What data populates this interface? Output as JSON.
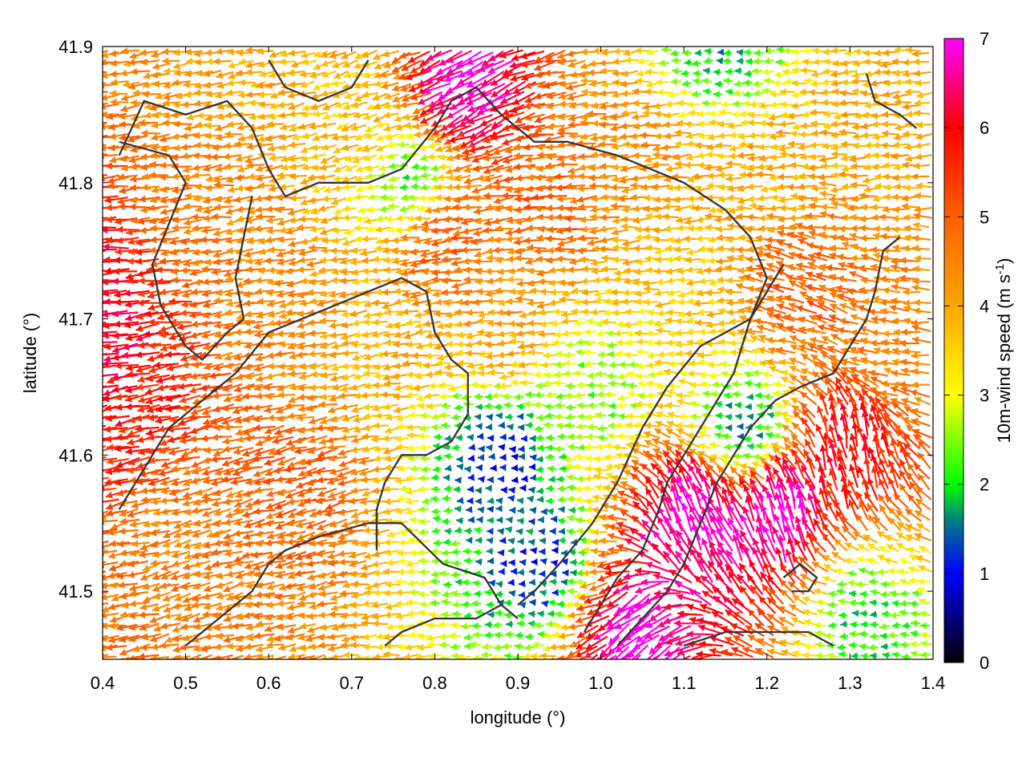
{
  "chart_data": {
    "type": "vector-field",
    "xlabel": "longitude (°)",
    "ylabel": "latitude (°)",
    "xlim": [
      0.4,
      1.4
    ],
    "ylim": [
      41.45,
      41.9
    ],
    "xticks": [
      {
        "value": 0.4,
        "label": "0.4"
      },
      {
        "value": 0.5,
        "label": "0.5"
      },
      {
        "value": 0.6,
        "label": "0.6"
      },
      {
        "value": 0.7,
        "label": "0.7"
      },
      {
        "value": 0.8,
        "label": "0.8"
      },
      {
        "value": 0.9,
        "label": "0.9"
      },
      {
        "value": 1.0,
        "label": "1.0"
      },
      {
        "value": 1.1,
        "label": "1.1"
      },
      {
        "value": 1.2,
        "label": "1.2"
      },
      {
        "value": 1.3,
        "label": "1.3"
      },
      {
        "value": 1.4,
        "label": "1.4"
      }
    ],
    "yticks": [
      {
        "value": 41.5,
        "label": "41.5"
      },
      {
        "value": 41.6,
        "label": "41.6"
      },
      {
        "value": 41.7,
        "label": "41.7"
      },
      {
        "value": 41.8,
        "label": "41.8"
      },
      {
        "value": 41.9,
        "label": "41.9"
      }
    ],
    "grid": true,
    "colorbar": {
      "label": "10m-wind speed (m s-1)",
      "label_main": "10m-wind speed (m s",
      "label_sup": "-1",
      "label_end": ")",
      "range": [
        0,
        7
      ],
      "ticks": [
        {
          "value": 0,
          "label": "0"
        },
        {
          "value": 1,
          "label": "1"
        },
        {
          "value": 2,
          "label": "2"
        },
        {
          "value": 3,
          "label": "3"
        },
        {
          "value": 4,
          "label": "4"
        },
        {
          "value": 5,
          "label": "5"
        },
        {
          "value": 6,
          "label": "6"
        },
        {
          "value": 7,
          "label": "7"
        }
      ],
      "stops": [
        {
          "value": 0,
          "color": "#000000"
        },
        {
          "value": 1,
          "color": "#0000ff"
        },
        {
          "value": 1.6,
          "color": "#008080"
        },
        {
          "value": 2,
          "color": "#00ff00"
        },
        {
          "value": 3,
          "color": "#ffff00"
        },
        {
          "value": 4,
          "color": "#ffa500"
        },
        {
          "value": 5,
          "color": "#ff6000"
        },
        {
          "value": 6,
          "color": "#ff0000"
        },
        {
          "value": 7,
          "color": "#ff00ff"
        }
      ]
    },
    "wind_regions": [
      {
        "lon": 0.4,
        "lat": 41.75,
        "speed": 6.0,
        "dir_deg": 185
      },
      {
        "lon": 0.42,
        "lat": 41.68,
        "speed": 6.2,
        "dir_deg": 190
      },
      {
        "lon": 0.45,
        "lat": 41.62,
        "speed": 5.8,
        "dir_deg": 192
      },
      {
        "lon": 0.5,
        "lat": 41.8,
        "speed": 4.6,
        "dir_deg": 185
      },
      {
        "lon": 0.5,
        "lat": 41.55,
        "speed": 4.5,
        "dir_deg": 195
      },
      {
        "lon": 0.55,
        "lat": 41.88,
        "speed": 4.0,
        "dir_deg": 190
      },
      {
        "lon": 0.62,
        "lat": 41.72,
        "speed": 4.4,
        "dir_deg": 188
      },
      {
        "lon": 0.65,
        "lat": 41.58,
        "speed": 5.0,
        "dir_deg": 195
      },
      {
        "lon": 0.72,
        "lat": 41.84,
        "speed": 3.6,
        "dir_deg": 200
      },
      {
        "lon": 0.75,
        "lat": 41.68,
        "speed": 3.8,
        "dir_deg": 190
      },
      {
        "lon": 0.78,
        "lat": 41.8,
        "speed": 2.0,
        "dir_deg": 185
      },
      {
        "lon": 0.82,
        "lat": 41.76,
        "speed": 5.2,
        "dir_deg": 188
      },
      {
        "lon": 0.85,
        "lat": 41.87,
        "speed": 7.0,
        "dir_deg": 210
      },
      {
        "lon": 0.88,
        "lat": 41.6,
        "speed": 1.0,
        "dir_deg": 180
      },
      {
        "lon": 0.9,
        "lat": 41.7,
        "speed": 4.2,
        "dir_deg": 185
      },
      {
        "lon": 0.93,
        "lat": 41.52,
        "speed": 1.2,
        "dir_deg": 175
      },
      {
        "lon": 0.95,
        "lat": 41.78,
        "speed": 5.0,
        "dir_deg": 185
      },
      {
        "lon": 1.0,
        "lat": 41.65,
        "speed": 2.4,
        "dir_deg": 182
      },
      {
        "lon": 1.05,
        "lat": 41.82,
        "speed": 4.3,
        "dir_deg": 185
      },
      {
        "lon": 1.05,
        "lat": 41.47,
        "speed": 7.0,
        "dir_deg": 220
      },
      {
        "lon": 1.1,
        "lat": 41.73,
        "speed": 3.6,
        "dir_deg": 185
      },
      {
        "lon": 1.12,
        "lat": 41.55,
        "speed": 7.0,
        "dir_deg": 110
      },
      {
        "lon": 1.15,
        "lat": 41.9,
        "speed": 1.8,
        "dir_deg": 180
      },
      {
        "lon": 1.18,
        "lat": 41.62,
        "speed": 1.5,
        "dir_deg": 180
      },
      {
        "lon": 1.2,
        "lat": 41.8,
        "speed": 4.0,
        "dir_deg": 185
      },
      {
        "lon": 1.22,
        "lat": 41.55,
        "speed": 7.0,
        "dir_deg": 105
      },
      {
        "lon": 1.25,
        "lat": 41.72,
        "speed": 5.0,
        "dir_deg": 160
      },
      {
        "lon": 1.3,
        "lat": 41.6,
        "speed": 6.0,
        "dir_deg": 100
      },
      {
        "lon": 1.32,
        "lat": 41.48,
        "speed": 2.0,
        "dir_deg": 180
      },
      {
        "lon": 1.35,
        "lat": 41.83,
        "speed": 4.0,
        "dir_deg": 185
      },
      {
        "lon": 1.38,
        "lat": 41.68,
        "speed": 4.5,
        "dir_deg": 175
      }
    ],
    "contours": [
      [
        [
          0.42,
          41.82
        ],
        [
          0.45,
          41.86
        ],
        [
          0.5,
          41.85
        ],
        [
          0.55,
          41.86
        ],
        [
          0.58,
          41.84
        ],
        [
          0.6,
          41.81
        ],
        [
          0.62,
          41.79
        ],
        [
          0.66,
          41.8
        ],
        [
          0.72,
          41.8
        ],
        [
          0.76,
          41.81
        ],
        [
          0.8,
          41.84
        ],
        [
          0.82,
          41.86
        ],
        [
          0.85,
          41.87
        ],
        [
          0.88,
          41.85
        ],
        [
          0.92,
          41.83
        ],
        [
          0.96,
          41.83
        ],
        [
          1.02,
          41.82
        ],
        [
          1.1,
          41.8
        ],
        [
          1.15,
          41.78
        ],
        [
          1.18,
          41.76
        ],
        [
          1.2,
          41.73
        ],
        [
          1.18,
          41.7
        ],
        [
          1.12,
          41.68
        ],
        [
          1.08,
          41.65
        ],
        [
          1.05,
          41.62
        ],
        [
          1.02,
          41.58
        ],
        [
          0.99,
          41.55
        ],
        [
          0.95,
          41.52
        ],
        [
          0.92,
          41.5
        ],
        [
          0.9,
          41.49
        ]
      ],
      [
        [
          0.42,
          41.83
        ],
        [
          0.48,
          41.82
        ],
        [
          0.5,
          41.8
        ],
        [
          0.48,
          41.77
        ],
        [
          0.46,
          41.74
        ],
        [
          0.47,
          41.71
        ],
        [
          0.5,
          41.68
        ],
        [
          0.52,
          41.67
        ],
        [
          0.55,
          41.69
        ],
        [
          0.57,
          41.7
        ],
        [
          0.56,
          41.73
        ],
        [
          0.57,
          41.76
        ],
        [
          0.58,
          41.79
        ]
      ],
      [
        [
          0.42,
          41.56
        ],
        [
          0.45,
          41.59
        ],
        [
          0.48,
          41.62
        ],
        [
          0.52,
          41.64
        ],
        [
          0.56,
          41.66
        ],
        [
          0.6,
          41.69
        ],
        [
          0.64,
          41.7
        ],
        [
          0.68,
          41.71
        ],
        [
          0.72,
          41.72
        ],
        [
          0.76,
          41.73
        ],
        [
          0.79,
          41.72
        ],
        [
          0.8,
          41.69
        ],
        [
          0.82,
          41.67
        ],
        [
          0.84,
          41.66
        ],
        [
          0.84,
          41.63
        ],
        [
          0.82,
          41.61
        ],
        [
          0.79,
          41.6
        ],
        [
          0.76,
          41.6
        ],
        [
          0.74,
          41.58
        ],
        [
          0.73,
          41.56
        ],
        [
          0.73,
          41.53
        ]
      ],
      [
        [
          0.5,
          41.46
        ],
        [
          0.54,
          41.48
        ],
        [
          0.58,
          41.5
        ],
        [
          0.6,
          41.52
        ],
        [
          0.62,
          41.53
        ],
        [
          0.66,
          41.54
        ],
        [
          0.72,
          41.55
        ],
        [
          0.76,
          41.55
        ],
        [
          0.81,
          41.52
        ],
        [
          0.86,
          41.51
        ],
        [
          0.88,
          41.49
        ],
        [
          0.9,
          41.48
        ]
      ],
      [
        [
          1.02,
          41.46
        ],
        [
          1.05,
          41.48
        ],
        [
          1.08,
          41.5
        ],
        [
          1.1,
          41.52
        ],
        [
          1.12,
          41.55
        ],
        [
          1.14,
          41.58
        ],
        [
          1.16,
          41.6
        ],
        [
          1.18,
          41.62
        ],
        [
          1.21,
          41.64
        ],
        [
          1.24,
          41.65
        ],
        [
          1.28,
          41.66
        ],
        [
          1.3,
          41.68
        ],
        [
          1.32,
          41.7
        ],
        [
          1.33,
          41.72
        ],
        [
          1.34,
          41.75
        ],
        [
          1.36,
          41.76
        ]
      ],
      [
        [
          0.74,
          41.46
        ],
        [
          0.76,
          41.47
        ],
        [
          0.8,
          41.48
        ],
        [
          0.85,
          41.48
        ],
        [
          0.88,
          41.49
        ]
      ],
      [
        [
          1.1,
          41.46
        ],
        [
          1.15,
          41.47
        ],
        [
          1.2,
          41.47
        ],
        [
          1.25,
          41.47
        ],
        [
          1.28,
          41.46
        ]
      ],
      [
        [
          0.98,
          41.47
        ],
        [
          1.0,
          41.49
        ],
        [
          1.02,
          41.51
        ],
        [
          1.05,
          41.53
        ],
        [
          1.07,
          41.56
        ],
        [
          1.08,
          41.58
        ],
        [
          1.1,
          41.6
        ],
        [
          1.12,
          41.62
        ],
        [
          1.14,
          41.64
        ],
        [
          1.16,
          41.66
        ],
        [
          1.18,
          41.7
        ],
        [
          1.2,
          41.72
        ],
        [
          1.22,
          41.74
        ]
      ],
      [
        [
          0.6,
          41.89
        ],
        [
          0.62,
          41.87
        ],
        [
          0.66,
          41.86
        ],
        [
          0.7,
          41.87
        ],
        [
          0.72,
          41.89
        ]
      ],
      [
        [
          1.32,
          41.88
        ],
        [
          1.33,
          41.86
        ],
        [
          1.36,
          41.85
        ],
        [
          1.38,
          41.84
        ]
      ],
      [
        [
          1.22,
          41.51
        ],
        [
          1.24,
          41.52
        ],
        [
          1.26,
          41.51
        ],
        [
          1.25,
          41.5
        ],
        [
          1.23,
          41.5
        ]
      ]
    ]
  }
}
